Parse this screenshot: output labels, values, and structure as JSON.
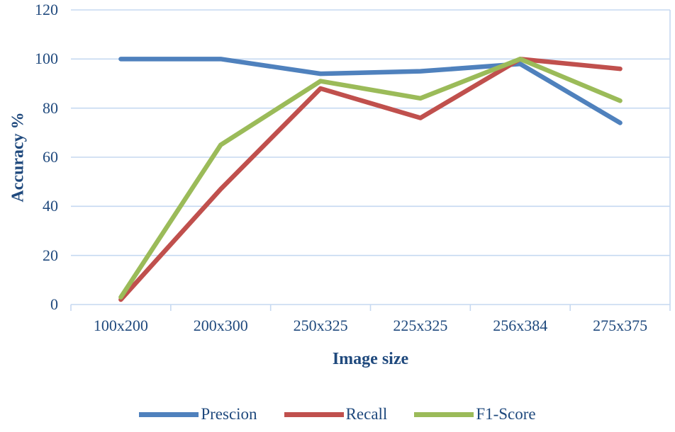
{
  "chart_data": {
    "type": "line",
    "title": "",
    "xlabel": "Image size",
    "ylabel": "Accuracy %",
    "categories": [
      "100x200",
      "200x300",
      "250x325",
      "225x325",
      "256x384",
      "275x375"
    ],
    "series": [
      {
        "name": "Prescion",
        "color": "#4F81BD",
        "values": [
          100,
          100,
          94,
          95,
          98,
          74
        ]
      },
      {
        "name": "Recall",
        "color": "#C0504D",
        "values": [
          2,
          47,
          88,
          76,
          100,
          96
        ]
      },
      {
        "name": "F1-Score",
        "color": "#9BBB59",
        "values": [
          3,
          65,
          91,
          84,
          100,
          83
        ]
      }
    ],
    "ylim": [
      0,
      120
    ],
    "yticks": [
      0,
      20,
      40,
      60,
      80,
      100,
      120
    ],
    "grid": true,
    "legend_position": "bottom"
  },
  "colors": {
    "text": "#1F497D",
    "gridline": "#C6D9F1",
    "background": "#FFFFFF"
  }
}
